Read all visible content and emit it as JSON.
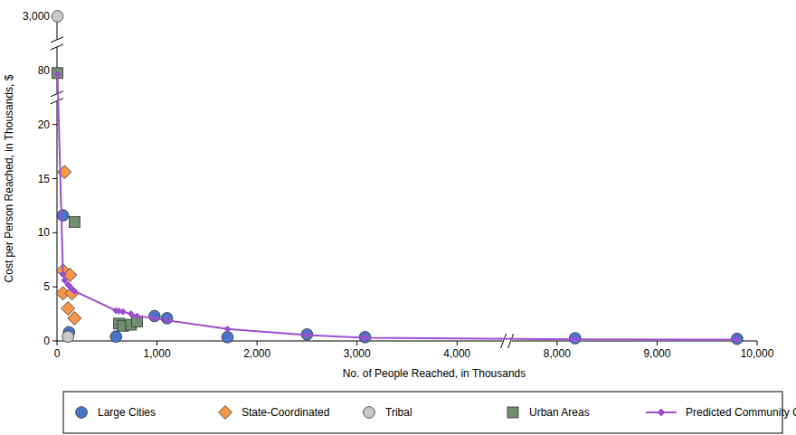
{
  "chart_data": {
    "type": "scatter",
    "x_label": "No. of People Reached, in Thousands",
    "y_label": "Cost per Person Reached, in Thousands, $",
    "xlim": [
      0,
      10000
    ],
    "xticks": [
      0,
      {
        "value": 1000,
        "label": "1,000"
      },
      {
        "value": 2000,
        "label": "2,000"
      },
      {
        "value": 3000,
        "label": "3,000"
      },
      {
        "value": 4000,
        "label": "4,000"
      },
      {
        "value": 8000,
        "label": "8,000"
      },
      {
        "value": 9000,
        "label": "9,000"
      },
      {
        "value": 10000,
        "label": "10,000"
      }
    ],
    "ylim": [
      0,
      3000
    ],
    "yticks": [
      0,
      5,
      10,
      15,
      20,
      80,
      {
        "value": 3000,
        "label": "3,000"
      }
    ],
    "grid": false,
    "legend": "bottom",
    "series": [
      {
        "name": "Large Cities",
        "type": "scatter",
        "marker": "circle",
        "color": "#4a74c9",
        "x": [
          60,
          120,
          590,
          975,
          1100,
          1705,
          2500,
          3080,
          8180,
          9800
        ],
        "values": [
          11.6,
          0.8,
          0.4,
          2.3,
          2.1,
          0.35,
          0.6,
          0.35,
          0.25,
          0.2
        ]
      },
      {
        "name": "State-Coordinated",
        "type": "scatter",
        "marker": "diamond",
        "color": "#f79646",
        "x": [
          75,
          60,
          130,
          60,
          150,
          110,
          175
        ],
        "values": [
          15.6,
          6.5,
          6.1,
          4.4,
          4.4,
          3.0,
          2.1
        ]
      },
      {
        "name": "Tribal",
        "type": "scatter",
        "marker": "circle",
        "color": "#c8c8c8",
        "x": [
          5,
          110
        ],
        "values": [
          3000,
          0.4
        ]
      },
      {
        "name": "Urban Areas",
        "type": "scatter",
        "marker": "square",
        "color": "#6f8f6f",
        "x": [
          5,
          175,
          620,
          660,
          740,
          800
        ],
        "values": [
          77,
          11.0,
          1.6,
          1.4,
          1.5,
          1.8
        ]
      },
      {
        "name": "Predicted Community Cost",
        "type": "line",
        "marker": "diamond",
        "color": "#9b4fcf",
        "x": [
          5,
          60,
          75,
          110,
          130,
          150,
          175,
          590,
          620,
          660,
          740,
          800,
          975,
          1100,
          1705,
          2500,
          3080,
          8180,
          9800
        ],
        "values": [
          76,
          6.2,
          5.6,
          5.2,
          5.0,
          4.8,
          4.6,
          2.8,
          2.75,
          2.7,
          2.5,
          2.3,
          2.1,
          1.9,
          1.1,
          0.55,
          0.3,
          0.15,
          0.12
        ]
      }
    ]
  }
}
